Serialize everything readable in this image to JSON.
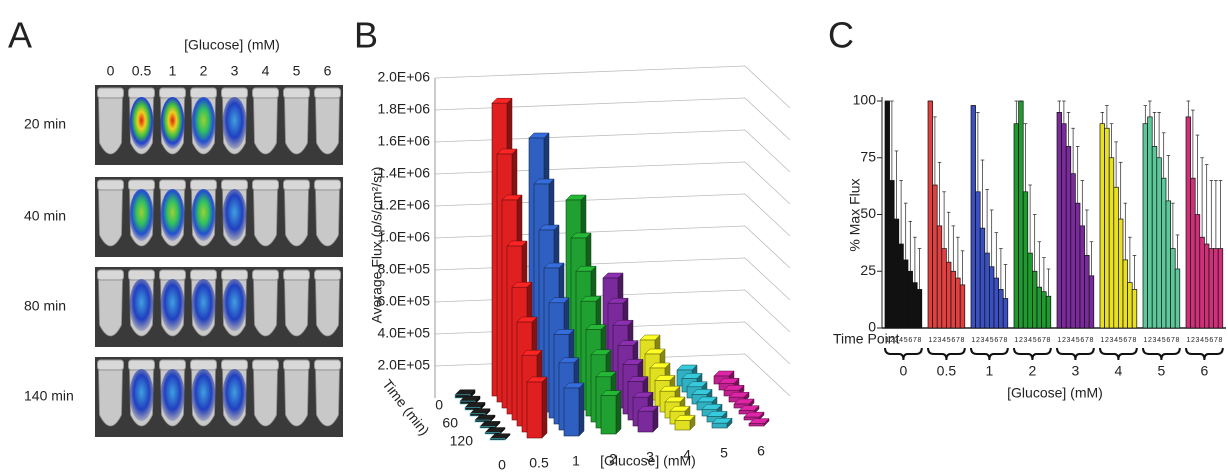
{
  "panel_a": {
    "label": "A",
    "title": "[Glucose] (mM)",
    "columns": [
      "0",
      "0.5",
      "1",
      "2",
      "3",
      "4",
      "5",
      "6"
    ],
    "rows": [
      "20 min",
      "40 min",
      "80 min",
      "140 min"
    ]
  },
  "chart_data": [
    {
      "type": "bar3d",
      "label": "B",
      "y_label": "Average Flux (p/s/cm²/sr)",
      "x_label": "[Glucose] (mM)",
      "z_label": "Time (min)",
      "categories": [
        "0",
        "0.5",
        "1",
        "2",
        "3",
        "4",
        "5",
        "6"
      ],
      "z": [
        0,
        20,
        40,
        60,
        80,
        100,
        120,
        140
      ],
      "zlim": [
        0,
        140
      ],
      "zticks": [
        0,
        60,
        120
      ],
      "ylim": [
        0,
        2000000
      ],
      "yticks": [
        {
          "value": 200000,
          "label": "2.0E+05"
        },
        {
          "value": 400000,
          "label": "4.0E+05"
        },
        {
          "value": 600000,
          "label": "6.0E+05"
        },
        {
          "value": 800000,
          "label": "8.0E+05"
        },
        {
          "value": 1000000,
          "label": "1.0E+06"
        },
        {
          "value": 1200000,
          "label": "1.2E+06"
        },
        {
          "value": 1400000,
          "label": "1.4E+06"
        },
        {
          "value": 1600000,
          "label": "1.6E+06"
        },
        {
          "value": 1800000,
          "label": "1.8E+06"
        },
        {
          "value": 2000000,
          "label": "2.0E+06"
        }
      ],
      "grid": true,
      "series": [
        {
          "color": "#1a1a1a",
          "values": [
            20000,
            18000,
            16000,
            14000,
            12000,
            10000,
            9000,
            8000
          ]
        },
        {
          "color": "#e02020",
          "values": [
            1830000,
            1550000,
            1300000,
            1050000,
            830000,
            650000,
            480000,
            350000
          ]
        },
        {
          "color": "#2f5fc0",
          "values": [
            1600000,
            1350000,
            1100000,
            900000,
            720000,
            560000,
            420000,
            300000
          ]
        },
        {
          "color": "#20a030",
          "values": [
            1200000,
            1000000,
            830000,
            680000,
            540000,
            420000,
            320000,
            240000
          ]
        },
        {
          "color": "#7a2a9a",
          "values": [
            700000,
            580000,
            480000,
            390000,
            310000,
            240000,
            180000,
            130000
          ]
        },
        {
          "color": "#e0e020",
          "values": [
            300000,
            250000,
            200000,
            160000,
            130000,
            100000,
            80000,
            60000
          ]
        },
        {
          "color": "#30b0c0",
          "values": [
            100000,
            85000,
            70000,
            60000,
            50000,
            42000,
            35000,
            30000
          ]
        },
        {
          "color": "#c02090",
          "values": [
            50000,
            42000,
            36000,
            30000,
            25000,
            21000,
            18000,
            15000
          ]
        }
      ]
    },
    {
      "type": "grouped-bar",
      "label": "C",
      "y_label": "% Max  Flux",
      "x_label": "[Glucose] (mM)",
      "time_point_label": "Time Point",
      "time_points": [
        "1",
        "2",
        "3",
        "4",
        "5",
        "6",
        "7",
        "8"
      ],
      "categories": [
        "0",
        "0.5",
        "1",
        "2",
        "3",
        "4",
        "5",
        "6"
      ],
      "ylim": [
        0,
        100
      ],
      "yticks": [
        0,
        25,
        50,
        75,
        100
      ],
      "series": [
        {
          "color": "#111111",
          "values": [
            100,
            65,
            48,
            37,
            30,
            25,
            20,
            17
          ],
          "errors": [
            0,
            35,
            30,
            28,
            25,
            22,
            20,
            18
          ]
        },
        {
          "color": "#e04040",
          "values": [
            100,
            63,
            45,
            35,
            29,
            25,
            22,
            19
          ],
          "errors": [
            0,
            30,
            28,
            25,
            22,
            20,
            18,
            15
          ]
        },
        {
          "color": "#3a4fc0",
          "values": [
            98,
            60,
            44,
            33,
            27,
            22,
            17,
            13
          ],
          "errors": [
            0,
            35,
            30,
            28,
            25,
            20,
            18,
            15
          ]
        },
        {
          "color": "#1f9a2f",
          "values": [
            90,
            100,
            60,
            33,
            25,
            18,
            16,
            14
          ],
          "errors": [
            10,
            0,
            30,
            30,
            25,
            20,
            15,
            12
          ]
        },
        {
          "color": "#7a2a9a",
          "values": [
            95,
            90,
            80,
            68,
            55,
            45,
            32,
            23
          ],
          "errors": [
            5,
            10,
            15,
            20,
            25,
            20,
            20,
            15
          ]
        },
        {
          "color": "#e8e020",
          "values": [
            90,
            88,
            75,
            62,
            48,
            30,
            20,
            17
          ],
          "errors": [
            5,
            10,
            15,
            20,
            25,
            25,
            20,
            15
          ]
        },
        {
          "color": "#5cc89a",
          "values": [
            90,
            93,
            80,
            75,
            66,
            56,
            35,
            26
          ],
          "errors": [
            8,
            7,
            15,
            20,
            20,
            20,
            20,
            15
          ]
        },
        {
          "color": "#d0307a",
          "values": [
            93,
            66,
            50,
            40,
            37,
            35,
            35,
            35
          ],
          "errors": [
            7,
            30,
            35,
            35,
            35,
            30,
            30,
            30
          ]
        }
      ]
    }
  ]
}
